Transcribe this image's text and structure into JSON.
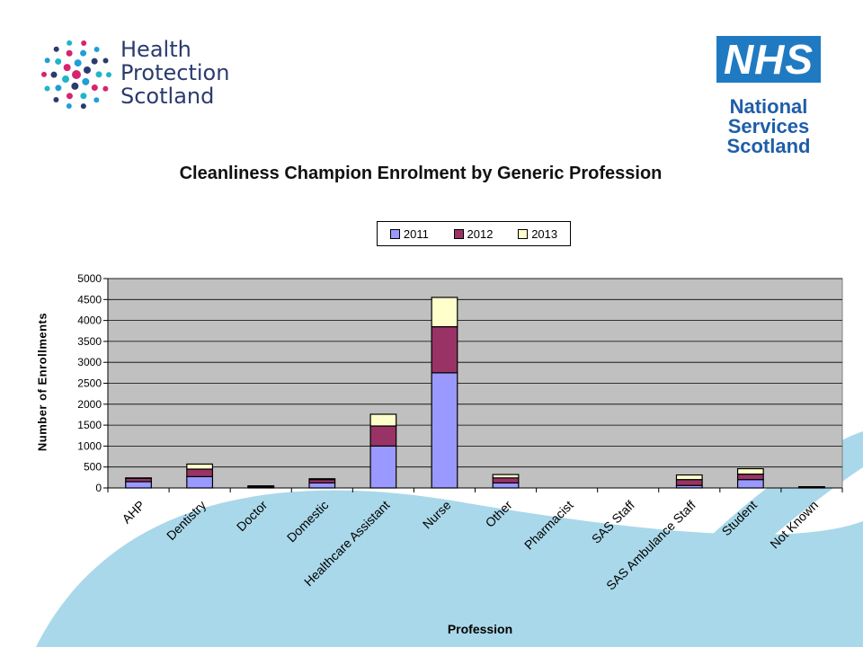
{
  "logos": {
    "left_lines": [
      "Health",
      "Protection",
      "Scotland"
    ],
    "right_mark": "NHS",
    "right_lines": [
      "National",
      "Services",
      "Scotland"
    ]
  },
  "colors": {
    "2011": "#9999ff",
    "2012": "#993366",
    "2013": "#ffffcc",
    "plot_bg": "#c0c0c0",
    "swoosh": "#a9d8ea"
  },
  "chart_data": {
    "type": "bar",
    "stacked": true,
    "title": "Cleanliness Champion Enrolment by Generic Profession",
    "xlabel": "Profession",
    "ylabel": "Number of Enrollments",
    "ylim": [
      0,
      5000
    ],
    "yticks": [
      0,
      500,
      1000,
      1500,
      2000,
      2500,
      3000,
      3500,
      4000,
      4500,
      5000
    ],
    "grid": true,
    "legend_position": "top-center",
    "categories": [
      "AHP",
      "Dentistry",
      "Doctor",
      "Domestic",
      "Healthcare Assistant",
      "Nurse",
      "Other",
      "Pharmacist",
      "SAS Staff",
      "SAS Ambulance Staff",
      "Student",
      "Not Known"
    ],
    "series": [
      {
        "name": "2011",
        "values": [
          150,
          270,
          20,
          120,
          1000,
          2750,
          120,
          0,
          0,
          60,
          200,
          10
        ]
      },
      {
        "name": "2012",
        "values": [
          80,
          180,
          20,
          80,
          480,
          1100,
          120,
          0,
          0,
          140,
          130,
          10
        ]
      },
      {
        "name": "2013",
        "values": [
          10,
          120,
          10,
          20,
          280,
          700,
          80,
          0,
          0,
          110,
          130,
          10
        ]
      }
    ]
  }
}
